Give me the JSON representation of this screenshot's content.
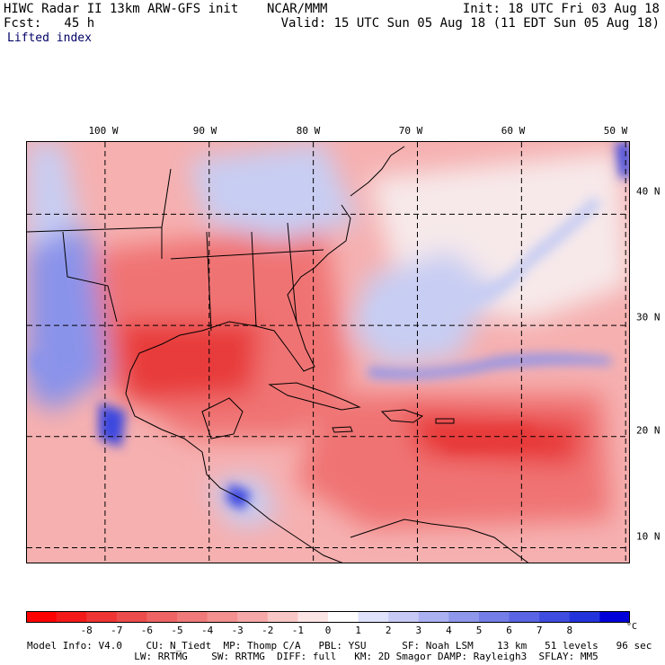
{
  "header": {
    "title": "HIWC Radar II 13km ARW-GFS init",
    "agency": "NCAR/MMM",
    "init": "Init: 18 UTC Fri 03 Aug 18",
    "fcst": "Fcst:   45 h",
    "valid": "Valid: 15 UTC Sun 05 Aug 18 (11 EDT Sun 05 Aug 18)",
    "field": "Lifted index"
  },
  "map": {
    "longitude_labels": [
      "100 W",
      "90 W",
      "80 W",
      "70 W",
      "60 W",
      "50 W"
    ],
    "longitudes": [
      100,
      90,
      80,
      70,
      60,
      50
    ],
    "latitude_labels": [
      "40 N",
      "30 N",
      "20 N",
      "10 N"
    ],
    "latitudes": [
      40,
      30,
      20,
      10
    ],
    "lon_range": [
      107.5,
      49.5
    ],
    "lat_range": [
      46.5,
      8.5
    ],
    "colors": {
      "strong_negative": "#e83a3a",
      "negative": "#f07373",
      "weak_negative": "#f6b0b0",
      "neutral": "#f7e9ea",
      "weak_positive": "#c8cdf3",
      "positive": "#8a93ea",
      "strong_positive": "#3a47df",
      "coast": "#000000"
    }
  },
  "colorbar": {
    "ticks": [
      "-8",
      "-7",
      "-6",
      "-5",
      "-4",
      "-3",
      "-2",
      "-1",
      "0",
      "1",
      "2",
      "3",
      "4",
      "5",
      "6",
      "7",
      "8"
    ],
    "unit": "°C",
    "colors": [
      "#ff0000",
      "#f51a1a",
      "#ef3434",
      "#ec4c4c",
      "#ee6464",
      "#f07a7a",
      "#f39090",
      "#f6a8a8",
      "#f9c6c6",
      "#fbe4e4",
      "#ffffff",
      "#dfe2fa",
      "#c6caf5",
      "#aab0f0",
      "#8f97ec",
      "#747ee8",
      "#5965e4",
      "#3e4ce0",
      "#2333dc",
      "#0000d8"
    ]
  },
  "footer": {
    "line1": "Model Info: V4.0    CU: N_Tiedt  MP: Thomp C/A   PBL: YSU      SF: Noah LSM    13 km   51 levels   96 sec",
    "line2": "                  LW: RRTMG    SW: RRTMG  DIFF: full   KM: 2D Smagor DAMP: Rayleigh3  SFLAY: MM5"
  }
}
